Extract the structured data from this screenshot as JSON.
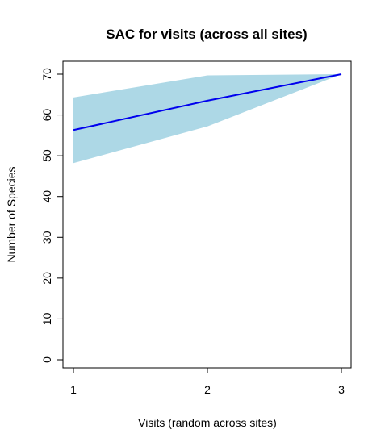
{
  "chart_data": {
    "type": "line",
    "title": "SAC for visits (across all sites)",
    "xlabel": "Visits (random across sites)",
    "ylabel": "Number of Species",
    "x": [
      1,
      2,
      3
    ],
    "series": [
      {
        "values": [
          56.3,
          63.5,
          70
        ]
      }
    ],
    "confidence_band": {
      "lower": [
        48.2,
        57.2,
        70
      ],
      "upper": [
        64.3,
        69.7,
        70
      ]
    },
    "xlim": [
      1,
      3
    ],
    "ylim": [
      0,
      70
    ],
    "xticks": [
      "1",
      "2",
      "3"
    ],
    "yticks": [
      "0",
      "10",
      "20",
      "30",
      "40",
      "50",
      "60",
      "70"
    ],
    "grid": false,
    "colors": {
      "line": "#0000ee",
      "band": "#add8e6",
      "axis": "#000000"
    }
  }
}
